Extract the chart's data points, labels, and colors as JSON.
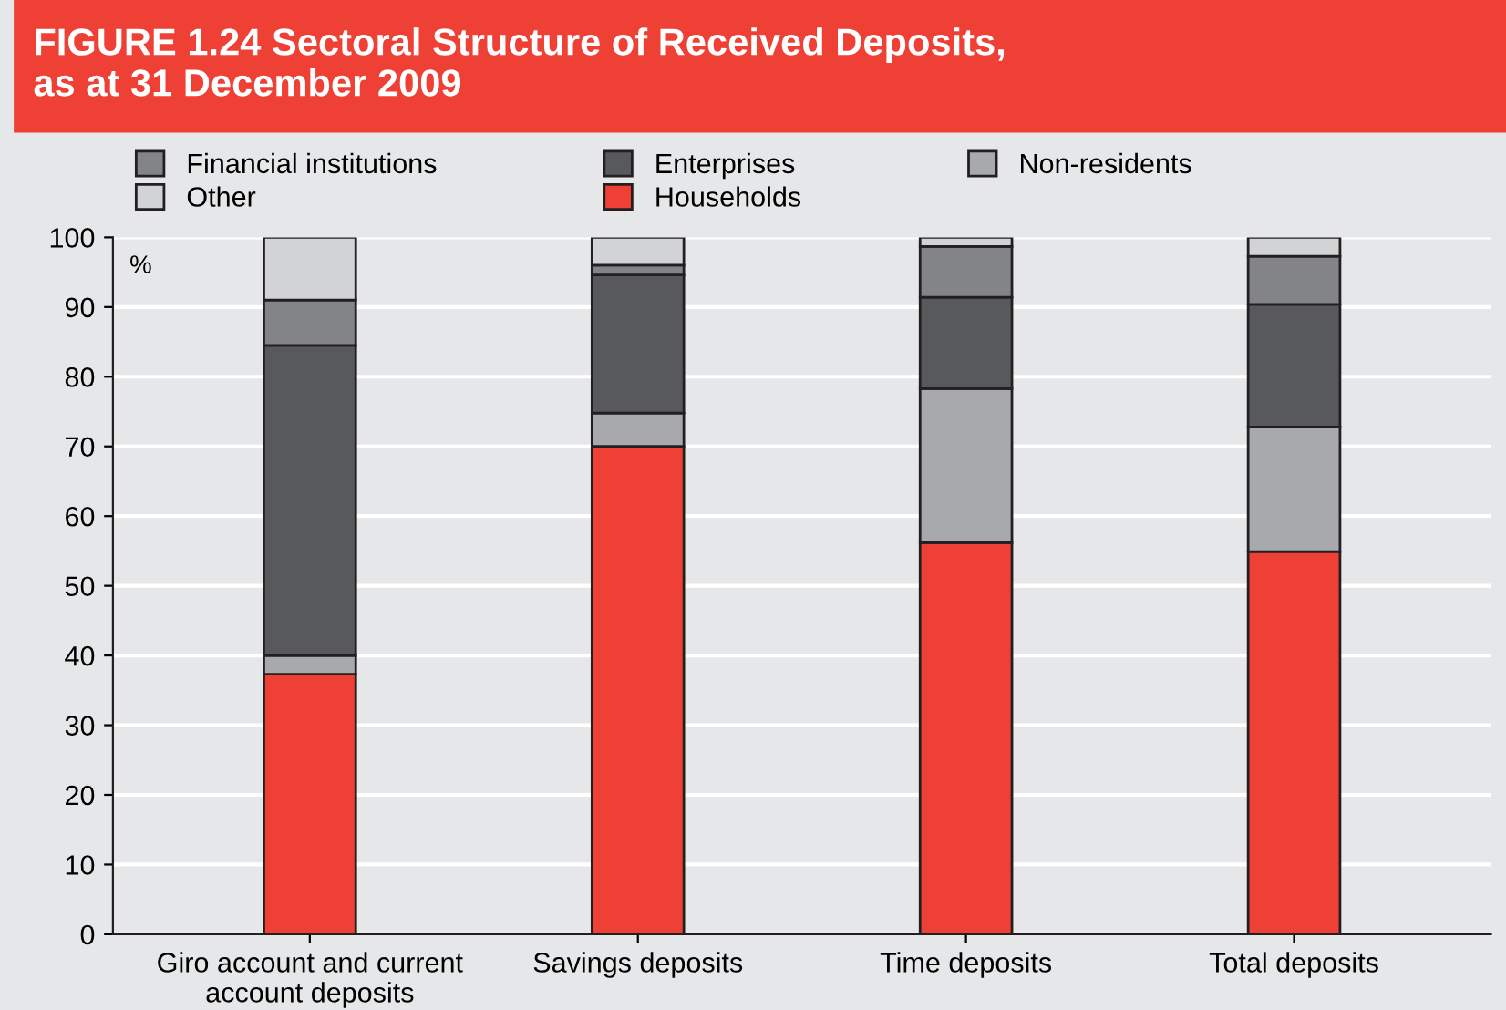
{
  "chart_data": {
    "type": "bar",
    "stacked": true,
    "title": "FIGURE 1.24 Sectoral Structure of Received Deposits,\nas at 31 December 2009",
    "ylabel": "%",
    "categories": [
      "Giro account and current\naccount deposits",
      "Savings deposits",
      "Time deposits",
      "Total deposits"
    ],
    "series": [
      {
        "name": "Households",
        "color": "#ef4035",
        "values": [
          37.3,
          70.0,
          56.2,
          54.9
        ]
      },
      {
        "name": "Non-residents",
        "color": "#a7a9ac",
        "values": [
          2.7,
          4.8,
          22.1,
          17.9
        ]
      },
      {
        "name": "Enterprises",
        "color": "#58595b",
        "values": [
          44.5,
          19.8,
          13.1,
          17.6
        ]
      },
      {
        "name": "Financial institutions",
        "color": "#838487",
        "values": [
          6.5,
          1.4,
          7.3,
          6.9
        ]
      },
      {
        "name": "Other",
        "color": "#d2d3d5",
        "values": [
          9.0,
          4.0,
          1.3,
          2.7
        ]
      }
    ],
    "ylim": [
      0,
      100
    ],
    "yticks": [
      0,
      10,
      20,
      30,
      40,
      50,
      60,
      70,
      80,
      90,
      100
    ],
    "grid": "y",
    "legend": "top"
  }
}
